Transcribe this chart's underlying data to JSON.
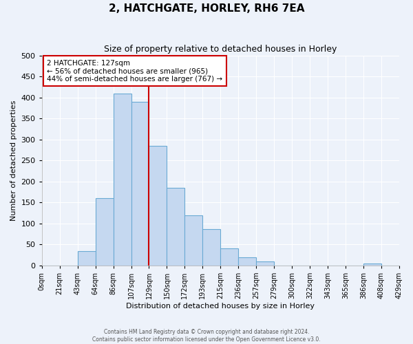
{
  "title": "2, HATCHGATE, HORLEY, RH6 7EA",
  "subtitle": "Size of property relative to detached houses in Horley",
  "xlabel": "Distribution of detached houses by size in Horley",
  "ylabel": "Number of detached properties",
  "bin_labels": [
    "0sqm",
    "21sqm",
    "43sqm",
    "64sqm",
    "86sqm",
    "107sqm",
    "129sqm",
    "150sqm",
    "172sqm",
    "193sqm",
    "215sqm",
    "236sqm",
    "257sqm",
    "279sqm",
    "300sqm",
    "322sqm",
    "343sqm",
    "365sqm",
    "386sqm",
    "408sqm",
    "429sqm"
  ],
  "bar_heights": [
    0,
    0,
    35,
    160,
    410,
    390,
    285,
    185,
    120,
    87,
    40,
    20,
    10,
    0,
    0,
    0,
    0,
    0,
    5,
    0
  ],
  "bar_color": "#c5d8f0",
  "bar_edge_color": "#6aaad4",
  "vline_index": 6,
  "vline_color": "#cc0000",
  "annotation_text": "2 HATCHGATE: 127sqm\n← 56% of detached houses are smaller (965)\n44% of semi-detached houses are larger (767) →",
  "annotation_box_color": "white",
  "annotation_box_edge": "#cc0000",
  "ylim": [
    0,
    500
  ],
  "yticks": [
    0,
    50,
    100,
    150,
    200,
    250,
    300,
    350,
    400,
    450,
    500
  ],
  "footer1": "Contains HM Land Registry data © Crown copyright and database right 2024.",
  "footer2": "Contains public sector information licensed under the Open Government Licence v3.0.",
  "background_color": "#edf2fa",
  "grid_color": "#ffffff",
  "title_fontsize": 11,
  "subtitle_fontsize": 9,
  "xlabel_fontsize": 8,
  "ylabel_fontsize": 8,
  "tick_fontsize": 7,
  "footer_fontsize": 5.5
}
